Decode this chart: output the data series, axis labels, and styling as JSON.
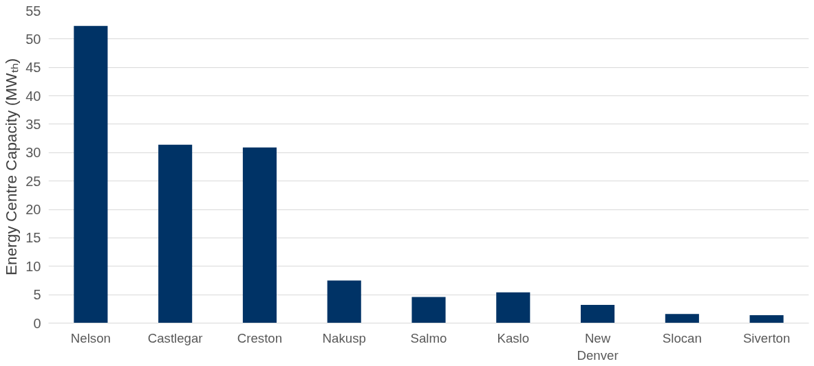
{
  "chart_data": {
    "type": "bar",
    "ylabel": "Energy Centre Capacity (MWₜₕ)",
    "categories": [
      "Nelson",
      "Castlegar",
      "Creston",
      "Nakusp",
      "Salmo",
      "Kaslo",
      "New Denver",
      "Slocan",
      "Siverton"
    ],
    "values": [
      52.3,
      31.4,
      30.9,
      7.5,
      4.6,
      5.4,
      3.2,
      1.6,
      1.4
    ],
    "color": "#003366",
    "ylim": [
      0,
      55
    ],
    "yticks": [
      0,
      5,
      10,
      15,
      20,
      25,
      30,
      35,
      40,
      45,
      50,
      55
    ],
    "grid": "y"
  }
}
